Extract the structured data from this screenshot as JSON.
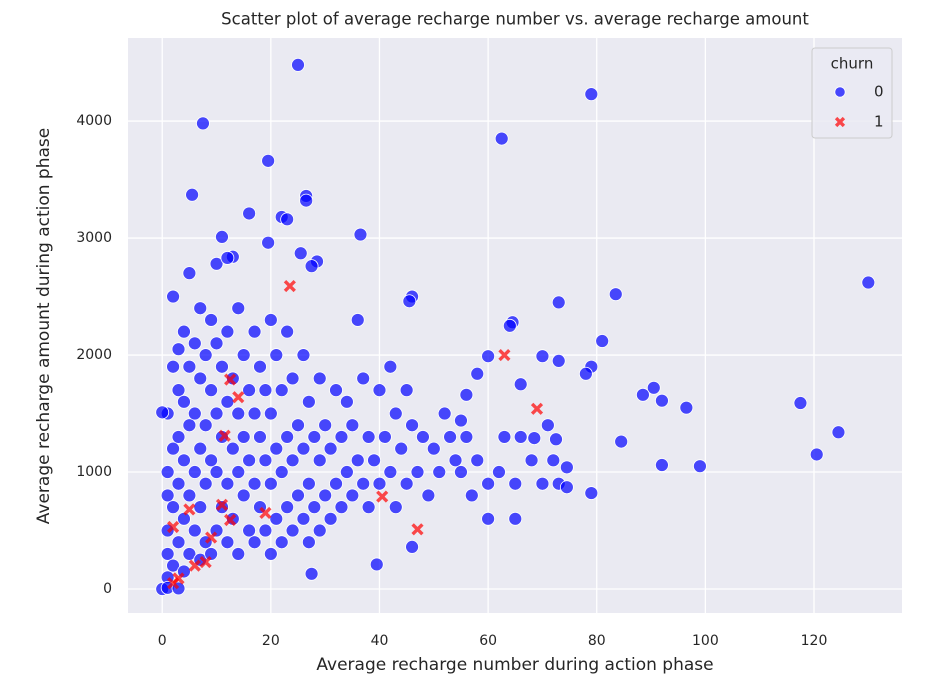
{
  "chart_data": {
    "type": "scatter",
    "title": "Scatter plot of average recharge number vs. average recharge amount",
    "x_label": "Average recharge number during action phase",
    "y_label": "Average recharge amount during action phase",
    "legend_title": "churn",
    "legend_loc": "upper right",
    "grid": true,
    "xlim": [
      -6.3,
      136.2
    ],
    "ylim": [
      -205,
      4710
    ],
    "xticks": [
      0,
      20,
      40,
      60,
      80,
      100,
      120
    ],
    "yticks": [
      0,
      1000,
      2000,
      3000,
      4000
    ],
    "series": [
      {
        "name": "0",
        "color": "#0000ff",
        "marker": "circle",
        "x": [
          1,
          1,
          1,
          1,
          1,
          1,
          2,
          2,
          2,
          2,
          2,
          3,
          3,
          3,
          3,
          3,
          4,
          4,
          4,
          4,
          4,
          5,
          5,
          5,
          5,
          5,
          6,
          6,
          6,
          6,
          7,
          7,
          7,
          7,
          7,
          8,
          8,
          8,
          8,
          9,
          9,
          9,
          9,
          10,
          10,
          10,
          10,
          11,
          11,
          11,
          12,
          12,
          12,
          12,
          13,
          13,
          13,
          14,
          14,
          14,
          14,
          15,
          15,
          15,
          16,
          16,
          16,
          17,
          17,
          17,
          17,
          18,
          18,
          18,
          19,
          19,
          19,
          20,
          20,
          20,
          20,
          21,
          21,
          21,
          22,
          22,
          22,
          23,
          23,
          23,
          24,
          24,
          24,
          25,
          25,
          26,
          26,
          26,
          27,
          27,
          27,
          28,
          28,
          29,
          29,
          29,
          30,
          30,
          31,
          31,
          32,
          32,
          33,
          33,
          34,
          34,
          35,
          35,
          36,
          36,
          37,
          37,
          38,
          38,
          39,
          40,
          40,
          41,
          42,
          42,
          43,
          43,
          44,
          45,
          45,
          46,
          47,
          48,
          49,
          50,
          51,
          52,
          53,
          54,
          55,
          56,
          57,
          58,
          60,
          60,
          62,
          63,
          65,
          65,
          66,
          68,
          70,
          72,
          73,
          25,
          79,
          7.5,
          62.5,
          19.5,
          5.5,
          26.5,
          26.5,
          16,
          22,
          23,
          36.5,
          11,
          19.5,
          25.5,
          13,
          28.5,
          10,
          12,
          27.5,
          130,
          83.5,
          73,
          46,
          45.5,
          117.5,
          120.5,
          124.5,
          99,
          92,
          96.5,
          90.5,
          88.5,
          92,
          84.5,
          81,
          79,
          78,
          79,
          74.5,
          74.5,
          72.5,
          73,
          70,
          71,
          68.5,
          66,
          64.5,
          64,
          60,
          58,
          56,
          55,
          39.5,
          46,
          27.5,
          0,
          1,
          3,
          0
        ],
        "values": [
          100,
          300,
          500,
          800,
          1000,
          1500,
          200,
          700,
          1200,
          1900,
          2500,
          400,
          900,
          1300,
          1700,
          2050,
          150,
          600,
          1100,
          1600,
          2200,
          300,
          800,
          1400,
          1900,
          2700,
          500,
          1000,
          1500,
          2100,
          250,
          700,
          1200,
          1800,
          2400,
          400,
          900,
          1400,
          2000,
          300,
          1100,
          1700,
          2300,
          500,
          1000,
          1500,
          2100,
          700,
          1300,
          1900,
          400,
          900,
          1600,
          2200,
          600,
          1200,
          1800,
          300,
          1000,
          1500,
          2400,
          800,
          1300,
          2000,
          500,
          1100,
          1700,
          400,
          900,
          1500,
          2200,
          700,
          1300,
          1900,
          500,
          1100,
          1700,
          300,
          900,
          1500,
          2300,
          600,
          1200,
          2000,
          400,
          1000,
          1700,
          700,
          1300,
          2200,
          500,
          1100,
          1800,
          800,
          1400,
          600,
          1200,
          2000,
          400,
          900,
          1600,
          700,
          1300,
          500,
          1100,
          1800,
          800,
          1400,
          600,
          1200,
          900,
          1700,
          700,
          1300,
          1000,
          1600,
          800,
          1400,
          1100,
          2300,
          900,
          1800,
          700,
          1300,
          1100,
          900,
          1700,
          1300,
          1000,
          1900,
          700,
          1500,
          1200,
          900,
          1700,
          1400,
          1000,
          1300,
          800,
          1200,
          1000,
          1500,
          1300,
          1100,
          1000,
          1300,
          800,
          1100,
          600,
          900,
          1000,
          1300,
          600,
          900,
          1300,
          1100,
          900,
          1100,
          900,
          4480,
          4230,
          3980,
          3850,
          3660,
          3370,
          3360,
          3320,
          3210,
          3180,
          3160,
          3030,
          3010,
          2960,
          2870,
          2840,
          2800,
          2780,
          2830,
          2760,
          2620,
          2520,
          2450,
          2500,
          2460,
          1590,
          1150,
          1340,
          1050,
          1060,
          1550,
          1720,
          1660,
          1610,
          1260,
          2120,
          1900,
          1840,
          820,
          1040,
          870,
          1280,
          1950,
          1990,
          1400,
          1290,
          1750,
          2280,
          2250,
          1990,
          1840,
          1660,
          1440,
          210,
          360,
          130,
          0,
          10,
          5,
          1510
        ]
      },
      {
        "name": "1",
        "color": "#ff0000",
        "marker": "x",
        "x": [
          23.5,
          12.5,
          11.5,
          14,
          12.5,
          19,
          9,
          40.5,
          63,
          69,
          2,
          5,
          2,
          3,
          8,
          47,
          11,
          6
        ],
        "values": [
          2590,
          1790,
          1310,
          1640,
          590,
          650,
          440,
          790,
          2000,
          1540,
          50,
          680,
          530,
          90,
          230,
          510,
          720,
          200
        ]
      }
    ]
  }
}
